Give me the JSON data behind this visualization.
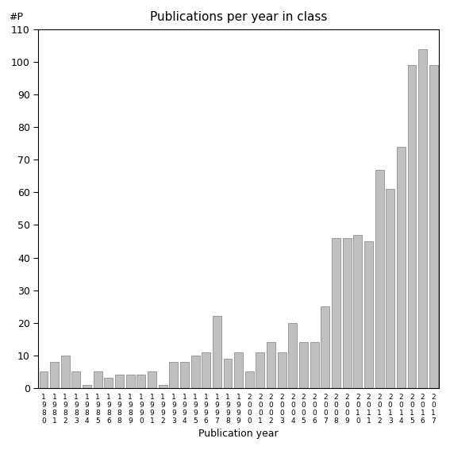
{
  "title": "Publications per year in class",
  "xlabel": "Publication year",
  "ylabel": "#P",
  "ylim": [
    0,
    110
  ],
  "yticks": [
    0,
    10,
    20,
    30,
    40,
    50,
    60,
    70,
    80,
    90,
    100,
    110
  ],
  "bar_color": "#c0c0c0",
  "bar_edge_color": "#808080",
  "years": [
    "1980",
    "1981",
    "1982",
    "1983",
    "1984",
    "1985",
    "1986",
    "1988",
    "1989",
    "1990",
    "1991",
    "1992",
    "1993",
    "1994",
    "1995",
    "1996",
    "1997",
    "1998",
    "1999",
    "2000",
    "2001",
    "2002",
    "2003",
    "2004",
    "2005",
    "2006",
    "2007",
    "2008",
    "2009",
    "2010",
    "2011",
    "2012",
    "2013",
    "2014",
    "2015",
    "2016",
    "2017"
  ],
  "values": [
    5,
    8,
    10,
    5,
    1,
    5,
    3,
    4,
    4,
    4,
    5,
    1,
    8,
    8,
    10,
    11,
    22,
    9,
    11,
    5,
    11,
    14,
    11,
    20,
    14,
    14,
    25,
    46,
    46,
    47,
    45,
    67,
    61,
    74,
    99,
    104,
    99
  ],
  "background_color": "#ffffff"
}
